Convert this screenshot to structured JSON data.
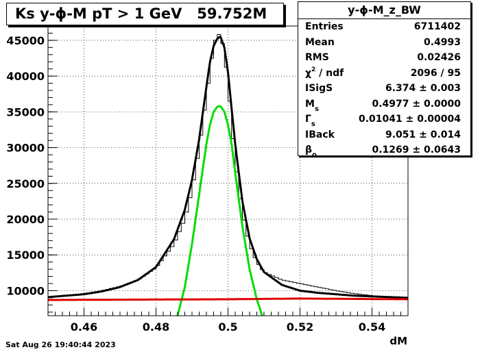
{
  "title": "Ks y-ϕ-M pT > 1 GeV   59.752M",
  "stats": {
    "name": "y-ϕ-M_z_BW",
    "rows": [
      {
        "label": "Entries",
        "value": "6711402"
      },
      {
        "label": "Mean",
        "value": "0.4993"
      },
      {
        "label": "RMS",
        "value": "0.02426"
      },
      {
        "label": "χ",
        "sup": "2",
        "label_rest": " / ndf",
        "value": "2096 / 95"
      },
      {
        "label": "ISigS",
        "value": "6.374 ± 0.003"
      },
      {
        "label": "M",
        "sub": "s",
        "value": "0.4977 ± 0.0000"
      },
      {
        "label": "Γ",
        "sub": "s",
        "value": "0.01041 ± 0.00004"
      },
      {
        "label": "IBack",
        "value": "9.051 ± 0.014"
      },
      {
        "label": "β",
        "sub": "o",
        "value": "0.1269 ± 0.0643"
      }
    ]
  },
  "footer": "Sat Aug 26 19:40:44 2023",
  "chart_data": {
    "type": "line",
    "title": "Ks y-ϕ-M pT > 1 GeV   59.752M",
    "xlabel": "dM",
    "ylabel": "",
    "xlim": [
      0.45,
      0.55
    ],
    "ylim": [
      6500,
      47000
    ],
    "x_ticks": [
      0.46,
      0.48,
      0.5,
      0.52,
      0.54
    ],
    "x_tick_labels": [
      "0.46",
      "0.48",
      "0.5",
      "0.52",
      "0.54"
    ],
    "y_ticks": [
      10000,
      15000,
      20000,
      25000,
      30000,
      35000,
      40000,
      45000
    ],
    "y_tick_labels": [
      "10000",
      "15000",
      "20000",
      "25000",
      "30000",
      "35000",
      "40000",
      "45000"
    ],
    "grid": true,
    "series": [
      {
        "kind": "histogram",
        "color": "#000000",
        "bin_width": 0.001,
        "x": [
          0.45,
          0.455,
          0.46,
          0.465,
          0.47,
          0.475,
          0.48,
          0.485,
          0.488,
          0.49,
          0.492,
          0.494,
          0.495,
          0.496,
          0.497,
          0.498,
          0.499,
          0.5,
          0.501,
          0.502,
          0.504,
          0.506,
          0.508,
          0.51,
          0.515,
          0.52,
          0.525,
          0.53,
          0.535,
          0.54,
          0.545,
          0.549
        ],
        "values": [
          9100,
          9300,
          9600,
          10000,
          10600,
          11500,
          13200,
          16500,
          20000,
          24000,
          30000,
          37000,
          41000,
          44000,
          46000,
          45600,
          43500,
          39000,
          34000,
          28500,
          21000,
          16500,
          14000,
          12600,
          11500,
          11000,
          10500,
          10000,
          9600,
          9300,
          9100,
          9000
        ]
      },
      {
        "kind": "fit-total",
        "color": "#000000",
        "x": [
          0.45,
          0.455,
          0.46,
          0.465,
          0.47,
          0.475,
          0.48,
          0.485,
          0.488,
          0.49,
          0.492,
          0.494,
          0.495,
          0.496,
          0.497,
          0.4977,
          0.498,
          0.499,
          0.5,
          0.501,
          0.502,
          0.504,
          0.506,
          0.508,
          0.51,
          0.515,
          0.52,
          0.525,
          0.53,
          0.535,
          0.54,
          0.545,
          0.55
        ],
        "values": [
          9100,
          9300,
          9500,
          9900,
          10500,
          11500,
          13300,
          17200,
          21300,
          25500,
          31200,
          38500,
          42000,
          44200,
          45200,
          45500,
          45400,
          44000,
          40500,
          35500,
          30500,
          22500,
          17300,
          14400,
          12600,
          10800,
          10000,
          9700,
          9500,
          9300,
          9200,
          9100,
          9000
        ]
      },
      {
        "kind": "fit-signal",
        "color": "#00dd00",
        "x": [
          0.486,
          0.488,
          0.49,
          0.492,
          0.494,
          0.495,
          0.496,
          0.497,
          0.4977,
          0.498,
          0.499,
          0.5,
          0.501,
          0.502,
          0.504,
          0.506,
          0.508,
          0.5095
        ],
        "values": [
          6500,
          10500,
          16500,
          23500,
          30500,
          33200,
          35000,
          35700,
          35800,
          35750,
          35000,
          33200,
          30500,
          26500,
          19000,
          13000,
          8800,
          6500
        ]
      },
      {
        "kind": "fit-background",
        "color": "#dd0000",
        "x": [
          0.45,
          0.5,
          0.52,
          0.55
        ],
        "values": [
          8700,
          8800,
          8900,
          8800
        ]
      }
    ]
  }
}
